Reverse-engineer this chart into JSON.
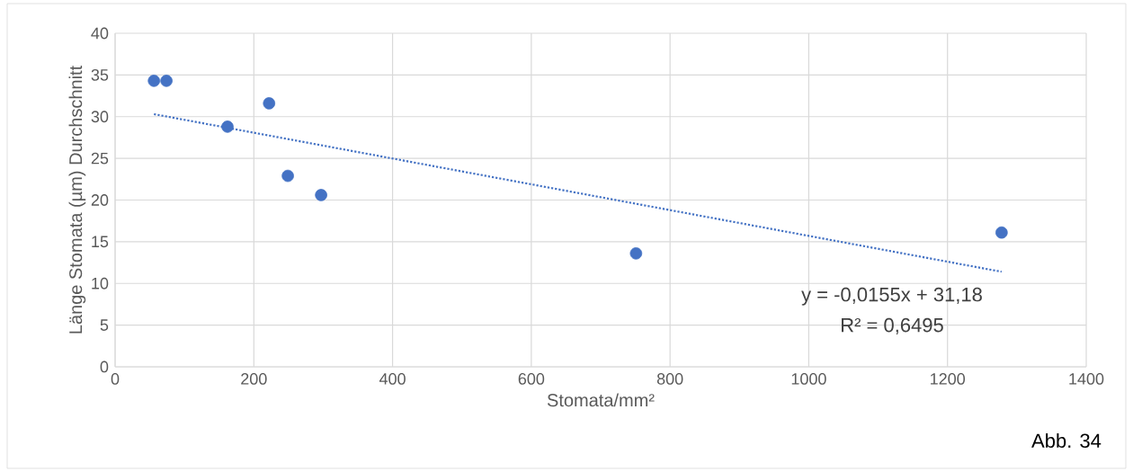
{
  "chart_data": {
    "type": "scatter",
    "xlabel": "Stomata/mm²",
    "ylabel": "Länge Stomata  (µm) Durchschnitt",
    "xlim": [
      0,
      1400
    ],
    "xticks": [
      0,
      200,
      400,
      600,
      800,
      1000,
      1200,
      1400
    ],
    "ylim": [
      0,
      40
    ],
    "yticks": [
      0,
      5,
      10,
      15,
      20,
      25,
      30,
      35,
      40
    ],
    "grid": true,
    "series": [
      {
        "color": "#4472c4",
        "marker": "circle",
        "x": [
          56,
          74,
          162,
          222,
          249,
          297,
          751,
          1278
        ],
        "values": [
          34.3,
          34.3,
          28.8,
          31.6,
          22.9,
          20.6,
          13.6,
          16.1
        ]
      },
      {
        "type": "line",
        "color": "#4472c4",
        "marker": "none",
        "line_style": "dotted",
        "x": [
          56,
          1278
        ],
        "values": [
          30.3,
          11.4
        ]
      }
    ],
    "annotations": [
      "y = -0,0155x + 31,18",
      "R² = 0,6495",
      "Abb. 34"
    ]
  }
}
